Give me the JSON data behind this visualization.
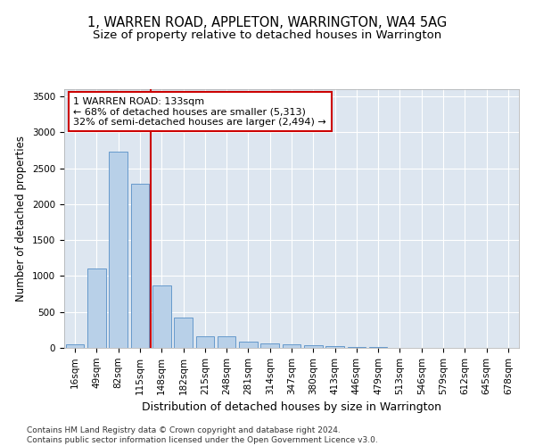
{
  "title": "1, WARREN ROAD, APPLETON, WARRINGTON, WA4 5AG",
  "subtitle": "Size of property relative to detached houses in Warrington",
  "xlabel": "Distribution of detached houses by size in Warrington",
  "ylabel": "Number of detached properties",
  "categories": [
    "16sqm",
    "49sqm",
    "82sqm",
    "115sqm",
    "148sqm",
    "182sqm",
    "215sqm",
    "248sqm",
    "281sqm",
    "314sqm",
    "347sqm",
    "380sqm",
    "413sqm",
    "446sqm",
    "479sqm",
    "513sqm",
    "546sqm",
    "579sqm",
    "612sqm",
    "645sqm",
    "678sqm"
  ],
  "values": [
    50,
    1100,
    2730,
    2280,
    870,
    420,
    165,
    165,
    90,
    60,
    50,
    35,
    25,
    15,
    10,
    5,
    5,
    5,
    5,
    5,
    5
  ],
  "bar_color": "#b8d0e8",
  "bar_edge_color": "#6699cc",
  "vline_x": 3.5,
  "vline_color": "#cc0000",
  "annotation_text": "1 WARREN ROAD: 133sqm\n← 68% of detached houses are smaller (5,313)\n32% of semi-detached houses are larger (2,494) →",
  "annotation_box_color": "#ffffff",
  "annotation_box_edge": "#cc0000",
  "ylim": [
    0,
    3600
  ],
  "yticks": [
    0,
    500,
    1000,
    1500,
    2000,
    2500,
    3000,
    3500
  ],
  "background_color": "#dde6f0",
  "footer_text": "Contains HM Land Registry data © Crown copyright and database right 2024.\nContains public sector information licensed under the Open Government Licence v3.0.",
  "title_fontsize": 10.5,
  "subtitle_fontsize": 9.5,
  "xlabel_fontsize": 9,
  "ylabel_fontsize": 8.5,
  "tick_fontsize": 7.5,
  "footer_fontsize": 6.5,
  "annotation_fontsize": 8
}
